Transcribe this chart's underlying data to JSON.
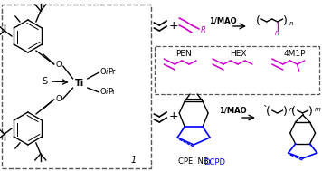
{
  "bg_color": "#ffffff",
  "black": "#000000",
  "magenta": "#cc00cc",
  "blue": "#0000ff",
  "gray": "#555555",
  "fig_width": 3.56,
  "fig_height": 1.89,
  "dpi": 100,
  "pen_label": "PEN",
  "hex_label": "HEX",
  "m1p_label": "4M1P",
  "cpe_label": "CPE, NB, ",
  "dcpd_label": "DCPD",
  "compound_label": "1"
}
